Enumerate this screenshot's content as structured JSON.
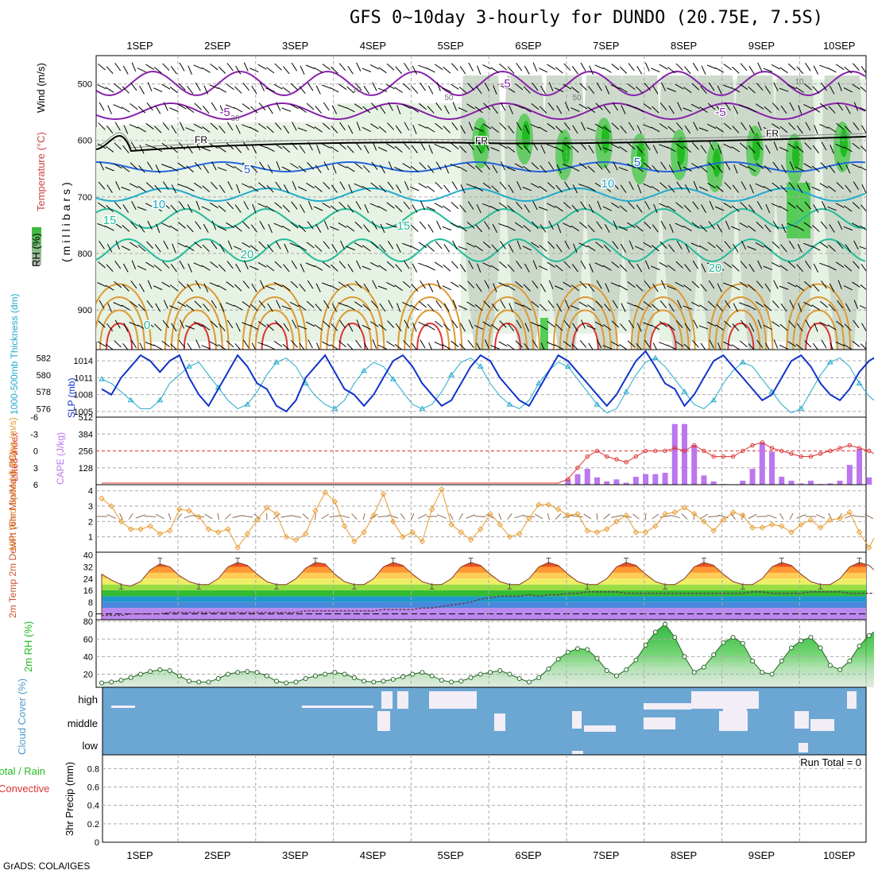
{
  "title": "GFS 0~10day 3-hourly for DUNDO (20.75E, 7.5S)",
  "credit": "GrADS: COLA/IGES",
  "chart_data": [
    {
      "type": "contour",
      "id": "upper",
      "title": "Wind (m/s) / Temperature (°C) / RH (%)",
      "legend": {
        "rh": "RH (%)",
        "temp": "Temperature (°C)",
        "wind": "Wind (m/s)"
      },
      "ylabel": "(millibars)",
      "ylim": [
        970,
        450
      ],
      "yticks": [
        500,
        600,
        700,
        800,
        900
      ],
      "temp_labels": [
        "-5",
        "-5",
        "-5",
        "5",
        "5",
        "10",
        "10",
        "15",
        "15",
        "20",
        "20",
        "0"
      ],
      "fr_label": "FR",
      "rh_labels": [
        "10",
        "30",
        "50",
        "50",
        "10"
      ]
    },
    {
      "type": "line",
      "id": "thk_slp",
      "ylabel_left": "1000-500mb Thickness (dm)",
      "ylabel_right": "SLP (mb)",
      "thk_ticks": [
        576,
        578,
        580,
        582
      ],
      "slp_ticks": [
        1005,
        1008,
        1011,
        1014
      ],
      "thk_range": [
        575,
        583
      ],
      "slp_range": [
        1004,
        1016
      ],
      "slp": [
        1009,
        1008,
        1011,
        1013,
        1015,
        1014,
        1012,
        1014,
        1015,
        1011,
        1008,
        1006,
        1009,
        1012,
        1015,
        1013,
        1010,
        1009,
        1006,
        1005,
        1007,
        1011,
        1013,
        1015,
        1012,
        1009,
        1008,
        1006,
        1008,
        1011,
        1014,
        1015,
        1013,
        1010,
        1008,
        1006,
        1007,
        1010,
        1013,
        1015,
        1014,
        1011,
        1009,
        1007,
        1006,
        1009,
        1012,
        1015,
        1014,
        1012,
        1010,
        1008,
        1006,
        1008,
        1011,
        1014,
        1016,
        1013,
        1010,
        1009,
        1006,
        1008,
        1011,
        1014,
        1015,
        1013,
        1011,
        1009,
        1007,
        1008,
        1011,
        1014,
        1015,
        1013,
        1010,
        1008,
        1007,
        1009,
        1012,
        1014,
        1015,
        1012,
        1010,
        1008,
        1006,
        1008,
        1011,
        1013,
        1014,
        1010,
        1007,
        1010,
        1013,
        1015,
        1013
      ],
      "thk": [
        579.5,
        579,
        578,
        577,
        576,
        576,
        577,
        579,
        580,
        581,
        581.5,
        580,
        578.5,
        577,
        576,
        576.5,
        578,
        580,
        581.5,
        582,
        581,
        579,
        577.5,
        576.5,
        576,
        577,
        579,
        580.5,
        581.5,
        581,
        579.5,
        578,
        576.5,
        576,
        576.5,
        578,
        580,
        581.5,
        582,
        581,
        579,
        577.5,
        576.5,
        576,
        577,
        579,
        580.5,
        581.5,
        581,
        579.5,
        578,
        576.5,
        575.5,
        576,
        578,
        580,
        581.5,
        582,
        581,
        579.5,
        578,
        576.5,
        576,
        577,
        579,
        580.5,
        581.5,
        581,
        579.5,
        578,
        576.5,
        575.5,
        576,
        578,
        580,
        581.5,
        582,
        581,
        579,
        577.5,
        576.5,
        576,
        577,
        579,
        580.5,
        581.5,
        581,
        579.5,
        578,
        576.5,
        575.5,
        576,
        578,
        579.5,
        578
      ]
    },
    {
      "type": "bar+line",
      "id": "cape_li",
      "ylabel_left": "Lifted Index",
      "ylabel_right": "CAPE (J/kg)",
      "li_ticks": [
        "-6",
        "-3",
        "0",
        "3",
        "6"
      ],
      "li_ticks_display": [
        "-6",
        "-3",
        "0",
        "3",
        "6"
      ],
      "cape_ticks": [
        "512",
        "384",
        "256",
        "128"
      ],
      "cape_range": [
        0,
        512
      ],
      "li_range": [
        6,
        -6
      ],
      "cape": [
        0,
        0,
        0,
        0,
        0,
        0,
        0,
        0,
        0,
        0,
        0,
        0,
        0,
        0,
        0,
        0,
        0,
        0,
        0,
        0,
        0,
        0,
        0,
        0,
        0,
        0,
        0,
        0,
        0,
        0,
        0,
        0,
        0,
        0,
        0,
        0,
        0,
        0,
        0,
        0,
        0,
        0,
        0,
        0,
        0,
        0,
        0,
        0,
        0,
        0,
        0,
        0,
        0,
        0,
        0,
        0,
        0,
        0,
        0,
        0,
        0,
        0,
        0,
        0,
        0,
        0,
        0,
        0,
        0,
        0,
        0,
        0,
        0,
        0,
        0,
        0,
        0,
        0,
        0,
        0,
        0,
        0,
        0,
        0,
        0,
        0,
        0,
        0,
        0,
        0,
        0,
        0,
        0,
        0,
        0
      ],
      "cape_bars": [
        [
          48,
          40
        ],
        [
          49,
          80
        ],
        [
          50,
          120
        ],
        [
          51,
          55
        ],
        [
          52,
          25
        ],
        [
          53,
          40
        ],
        [
          54,
          15
        ],
        [
          55,
          60
        ],
        [
          56,
          80
        ],
        [
          57,
          80
        ],
        [
          58,
          90
        ],
        [
          59,
          460
        ],
        [
          60,
          460
        ],
        [
          61,
          300
        ],
        [
          62,
          70
        ],
        [
          63,
          25
        ],
        [
          64,
          5
        ],
        [
          65,
          0
        ],
        [
          66,
          30
        ],
        [
          67,
          120
        ],
        [
          68,
          320
        ],
        [
          69,
          250
        ],
        [
          70,
          60
        ],
        [
          71,
          30
        ],
        [
          72,
          10
        ],
        [
          73,
          30
        ],
        [
          74,
          5
        ],
        [
          75,
          10
        ],
        [
          76,
          30
        ],
        [
          77,
          150
        ],
        [
          78,
          270
        ],
        [
          79,
          55
        ],
        [
          80,
          40
        ],
        [
          81,
          20
        ],
        [
          82,
          5
        ],
        [
          83,
          30
        ],
        [
          84,
          70
        ],
        [
          85,
          160
        ],
        [
          86,
          320
        ],
        [
          87,
          300
        ],
        [
          88,
          240
        ],
        [
          89,
          70
        ],
        [
          90,
          35
        ],
        [
          91,
          75
        ],
        [
          92,
          50
        ]
      ],
      "li": [
        6,
        6,
        6,
        6,
        6,
        6,
        6,
        6,
        6,
        6,
        6,
        6,
        6,
        6,
        6,
        6,
        6,
        6,
        6,
        6,
        6,
        6,
        6,
        6,
        6,
        6,
        6,
        6,
        6,
        6,
        6,
        6,
        6,
        6,
        6,
        6,
        6,
        6,
        6,
        6,
        6,
        6,
        6,
        6,
        6,
        6,
        6,
        6,
        5,
        3,
        1,
        0,
        1,
        1.5,
        2,
        1,
        0,
        0,
        0,
        -0.5,
        0,
        -1,
        0,
        1,
        1,
        1,
        0,
        -1,
        -1.5,
        -0.5,
        0,
        0.5,
        1,
        1,
        0.5,
        0,
        -0.5,
        -1,
        -0.5,
        0,
        1,
        0.5,
        0,
        -0.5,
        -1,
        -1,
        0,
        0.5,
        0,
        -0.5,
        -1,
        0.5,
        1,
        0,
        -0.5
      ]
    },
    {
      "type": "line",
      "id": "wind10",
      "ylabel": "10m Wind Speed & Barbs (m/s)",
      "yticks": [
        1,
        2,
        3,
        4
      ],
      "ylim": [
        0,
        4.4
      ],
      "values": [
        3.5,
        3,
        2,
        1.5,
        1.5,
        1.7,
        1.2,
        1.4,
        2.8,
        2.7,
        2.3,
        1.5,
        1.3,
        1.5,
        0.3,
        1.2,
        2.1,
        2.9,
        2.5,
        1,
        0.8,
        1.2,
        2.7,
        3.9,
        3.3,
        1.7,
        0.7,
        1.3,
        2.4,
        3.8,
        2,
        1,
        1.3,
        0.7,
        2.8,
        4.1,
        1.8,
        1.3,
        0.8,
        1.5,
        2.5,
        1.8,
        1,
        1.2,
        2.2,
        3.1,
        3.1,
        2.8,
        2.4,
        2.5,
        1.4,
        1.3,
        1.5,
        2,
        2.4,
        1.3,
        1.3,
        1.7,
        2.5,
        2.6,
        2.9,
        2.5,
        2,
        1.4,
        2.1,
        2.6,
        2.4,
        1.6,
        1.6,
        1.8,
        1.7,
        1.3,
        1.8,
        2.1,
        1.6,
        2.1,
        2.2,
        2.6,
        1.3,
        0.3,
        1.5,
        2.1,
        2.7,
        1.8,
        1.1,
        1.4,
        1.9,
        2.8,
        3.5,
        2.2,
        1.5,
        1.8,
        1,
        1.5,
        3
      ]
    },
    {
      "type": "area",
      "id": "temp2m",
      "ylabel": "2m Temp 2m DewPt (6hr Min/Max) (°C)",
      "yticks": [
        "0",
        "8",
        "16",
        "24",
        "32",
        "40"
      ],
      "ylim": [
        -4,
        42
      ],
      "temp": [
        27,
        23,
        20,
        19,
        22,
        30,
        34,
        32,
        26,
        22,
        20,
        20,
        24,
        32,
        35,
        33,
        27,
        22,
        20,
        20,
        24,
        31,
        35,
        34,
        27,
        22,
        20,
        20,
        24,
        32,
        35,
        33,
        27,
        22,
        20,
        20,
        24,
        32,
        35,
        33,
        27,
        22,
        20,
        20,
        24,
        32,
        35,
        33,
        27,
        22,
        20,
        20,
        24,
        32,
        35,
        33,
        27,
        22,
        20,
        20,
        24,
        32,
        35,
        33,
        27,
        22,
        20,
        20,
        24,
        32,
        35,
        33,
        27,
        22,
        20,
        20,
        24,
        32,
        35,
        33,
        27,
        22,
        20,
        20,
        24,
        31,
        34,
        32,
        26,
        22,
        20,
        20,
        22,
        23,
        22
      ],
      "dewpt": [
        -1,
        -1,
        -1,
        0,
        0,
        0,
        0,
        1,
        1,
        1,
        1,
        1,
        1,
        1,
        1,
        1,
        1,
        1,
        1,
        1,
        1,
        2,
        2,
        2,
        2,
        2,
        2,
        2,
        2,
        3,
        3,
        3,
        3,
        4,
        4,
        5,
        6,
        7,
        8,
        10,
        11,
        12,
        12,
        12,
        13,
        12,
        13,
        13,
        14,
        14,
        15,
        15,
        15,
        15,
        14,
        14,
        14,
        14,
        14,
        14,
        14,
        14,
        14,
        14,
        14,
        14,
        14,
        15,
        15,
        14,
        14,
        14,
        14,
        15,
        15,
        15,
        15,
        14,
        14,
        14,
        14,
        14,
        14,
        14,
        14,
        15,
        15,
        15,
        15,
        14,
        14,
        14,
        15,
        15,
        15
      ]
    },
    {
      "type": "area",
      "id": "rh2m",
      "ylabel": "2m RH (%)",
      "yticks": [
        20,
        40,
        60,
        80
      ],
      "ylim": [
        5,
        82
      ],
      "values": [
        10,
        11,
        13,
        16,
        20,
        23,
        25,
        24,
        18,
        12,
        11,
        11,
        15,
        20,
        22,
        23,
        22,
        18,
        12,
        10,
        11,
        15,
        18,
        20,
        22,
        20,
        16,
        12,
        11,
        12,
        14,
        17,
        20,
        22,
        18,
        13,
        11,
        12,
        16,
        20,
        22,
        24,
        20,
        15,
        11,
        16,
        26,
        37,
        45,
        49,
        48,
        38,
        24,
        18,
        25,
        36,
        53,
        68,
        77,
        62,
        40,
        22,
        28,
        42,
        56,
        62,
        55,
        35,
        22,
        20,
        35,
        50,
        58,
        62,
        50,
        30,
        25,
        35,
        52,
        64,
        72,
        68,
        42,
        20,
        30,
        45,
        58,
        64,
        68,
        58,
        45,
        40,
        45,
        56,
        60
      ]
    },
    {
      "type": "heatmap",
      "id": "cloud",
      "ylabel": "Cloud Cover (%)",
      "levels": [
        "high",
        "middle",
        "low"
      ]
    },
    {
      "type": "bar",
      "id": "precip",
      "ylabel": "3hr Precip (mm)",
      "legend_total": "Total / Rain",
      "legend_conv": "Convective",
      "run_total": "Run Total = 0",
      "yticks": [
        "0",
        "0.2",
        "0.4",
        "0.6",
        "0.8"
      ],
      "ylim": [
        0,
        0.95
      ],
      "values": []
    }
  ],
  "x_axis": {
    "labels": [
      "1SEP",
      "2SEP",
      "3SEP",
      "4SEP",
      "5SEP",
      "6SEP",
      "7SEP",
      "8SEP",
      "9SEP",
      "10SEP"
    ]
  },
  "colors": {
    "slp": "#1133cc",
    "thk": "#22aacc",
    "cape": "#bb77ee",
    "li": "#dd3333",
    "wind": "#e69a2e",
    "rh": "#22bb22",
    "cloud_bg": "#6ca7d4",
    "cloud_fill": "#f3eef6",
    "temp_purple": "#8822aa",
    "temp_blue": "#2266dd",
    "temp_cyan": "#22aacc",
    "temp_teal": "#22bb99",
    "temp_orange": "#dd9933",
    "temp_red": "#dd3333"
  }
}
